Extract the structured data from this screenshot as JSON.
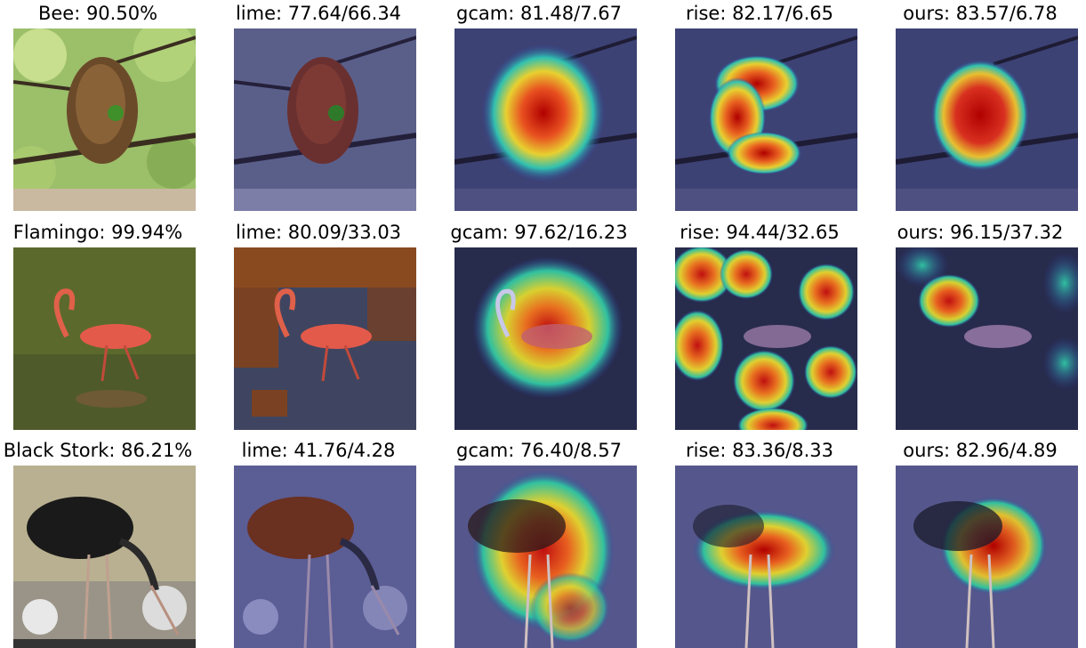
{
  "rows": [
    {
      "subject": "bee",
      "titles": [
        "Bee: 90.50%",
        "lime: 77.64/66.34",
        "gcam: 81.48/7.67",
        "rise: 82.17/6.65",
        "ours: 83.57/6.78"
      ]
    },
    {
      "subject": "flamingo",
      "titles": [
        "Flamingo: 99.94%",
        "lime: 80.09/33.03",
        "gcam: 97.62/16.23",
        "rise: 94.44/32.65",
        "ours: 96.15/37.32"
      ]
    },
    {
      "subject": "stork",
      "titles": [
        "Black Stork: 86.21%",
        "lime: 41.76/4.28",
        "gcam: 76.40/8.57",
        "rise: 83.36/8.33",
        "ours: 82.96/4.89"
      ]
    }
  ],
  "colors": {
    "heat_hot": "#cc1111",
    "heat_warm": "#ffdd22",
    "heat_cool": "#33ccaa",
    "overlay_blue": "#2a2a88"
  }
}
